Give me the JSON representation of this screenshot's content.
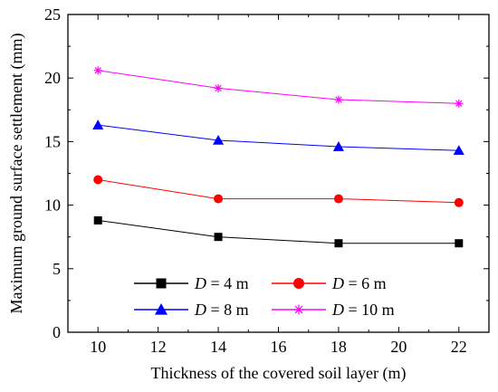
{
  "chart_data": {
    "type": "line",
    "title": "",
    "xlabel": "Thickness of the covered soil layer (m)",
    "ylabel": "Maximum ground surface settlement (mm)",
    "xlim": [
      9,
      23
    ],
    "ylim": [
      0,
      25
    ],
    "xticks": [
      10,
      12,
      14,
      16,
      18,
      20,
      22
    ],
    "yticks": [
      0,
      5,
      10,
      15,
      20,
      25
    ],
    "grid": false,
    "legend_placement": "bottom, inside plot, two columns",
    "x": [
      10,
      14,
      18,
      22
    ],
    "series": [
      {
        "name": "D = 4 m",
        "legend_var": "D",
        "legend_rest": " = 4 m",
        "values": [
          8.8,
          7.5,
          7.0,
          7.0
        ],
        "color": "#000000",
        "marker": "square"
      },
      {
        "name": "D = 6 m",
        "legend_var": "D",
        "legend_rest": " = 6 m",
        "values": [
          12.0,
          10.5,
          10.5,
          10.2
        ],
        "color": "#ff0000",
        "marker": "circle"
      },
      {
        "name": "D = 8 m",
        "legend_var": "D",
        "legend_rest": " = 8 m",
        "values": [
          16.3,
          15.1,
          14.6,
          14.3
        ],
        "color": "#0000ff",
        "marker": "triangle"
      },
      {
        "name": "D = 10 m",
        "legend_var": "D",
        "legend_rest": " = 10 m",
        "values": [
          20.6,
          19.2,
          18.3,
          18.0
        ],
        "color": "#ff00ff",
        "marker": "asterisk"
      }
    ]
  }
}
